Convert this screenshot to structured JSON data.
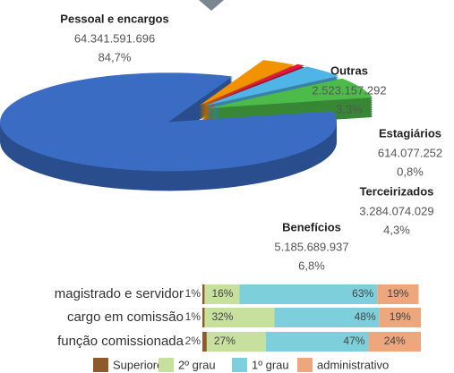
{
  "chart_data": [
    {
      "type": "pie3d",
      "categories": [
        "Pessoal e encargos",
        "Outras",
        "Estagiários",
        "Terceirizados",
        "Benefícios"
      ],
      "values": [
        64341591696,
        2523157292,
        614077252,
        3284074029,
        5185689937
      ],
      "value_labels": [
        "64.341.591.696",
        "2.523.157.292",
        "614.077.252",
        "3.284.074.029",
        "5.185.689.937"
      ],
      "shares": [
        84.7,
        3.3,
        0.8,
        4.3,
        6.8
      ],
      "share_labels": [
        "84,7%",
        "3,3%",
        "0,8%",
        "4,3%",
        "6,8%"
      ],
      "colors": [
        "#3b6cc4",
        "#f39200",
        "#e3173e",
        "#4fb4e6",
        "#4dbb4a"
      ]
    },
    {
      "type": "stacked-barh",
      "categories": [
        "magistrado e servidor",
        "cargo em comissão",
        "função comissionada"
      ],
      "xlim": [
        0,
        100
      ],
      "series": [
        {
          "name": "Superiores",
          "color": "#8d5a2a",
          "values": [
            1,
            1,
            2
          ],
          "value_labels": [
            "1%",
            "1%",
            "2%"
          ]
        },
        {
          "name": "2º grau",
          "color": "#c7e09e",
          "values": [
            16,
            32,
            27
          ],
          "value_labels": [
            "16%",
            "32%",
            "27%"
          ]
        },
        {
          "name": "1º grau",
          "color": "#7ecfdc",
          "values": [
            63,
            48,
            47
          ],
          "value_labels": [
            "63%",
            "48%",
            "47%"
          ]
        },
        {
          "name": "administrativo",
          "color": "#eea67c",
          "values": [
            19,
            19,
            24
          ],
          "value_labels": [
            "19%",
            "19%",
            "24%"
          ]
        }
      ]
    }
  ]
}
